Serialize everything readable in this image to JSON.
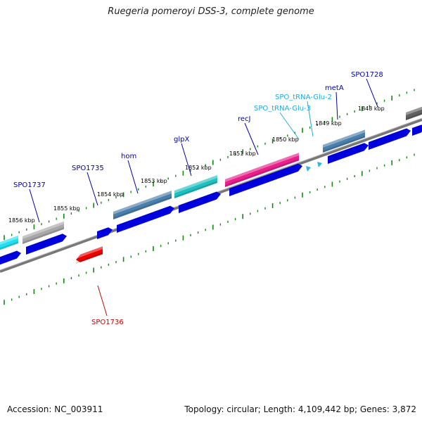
{
  "title": "Ruegeria pomeroyi DSS-3, complete genome",
  "footer": {
    "accession": "Accession: NC_003911",
    "summary": "Topology: circular; Length: 4,109,442 bp; Genes: 3,872"
  },
  "colors": {
    "cds_forward": "#0000dd",
    "cds_reverse": "#ee0000",
    "gene_gray": "#a8a8a8",
    "gene_steelblue": "#4a7fab",
    "gene_teal": "#20c0c0",
    "gene_pink": "#e8208a",
    "gene_cyan": "#20e0f0",
    "trna": "#2ab6e6",
    "backbone": "#777777",
    "tick": "#128a12",
    "label_blue": "#0000aa",
    "label_red": "#cc0000",
    "label_trna": "#20aadd"
  },
  "kbp_labels": [
    "1848 kbp",
    "1849 kbp",
    "1850 kbp",
    "1851 kbp",
    "1852 kbp",
    "1853 kbp",
    "1854 kbp",
    "1855 kbp",
    "1856 kbp"
  ],
  "gene_labels": [
    {
      "text": "SPO1728",
      "color": "label_blue"
    },
    {
      "text": "metA",
      "color": "label_blue"
    },
    {
      "text": "SPO_tRNA-Glu-2",
      "color": "label_trna"
    },
    {
      "text": "SPO_tRNA-Glu-3",
      "color": "label_trna"
    },
    {
      "text": "recJ",
      "color": "label_blue"
    },
    {
      "text": "glpX",
      "color": "label_blue"
    },
    {
      "text": "hom",
      "color": "label_blue"
    },
    {
      "text": "SPO1735",
      "color": "label_blue"
    },
    {
      "text": "SPO1737",
      "color": "label_blue"
    },
    {
      "text": "SPO1736",
      "color": "label_red"
    }
  ]
}
